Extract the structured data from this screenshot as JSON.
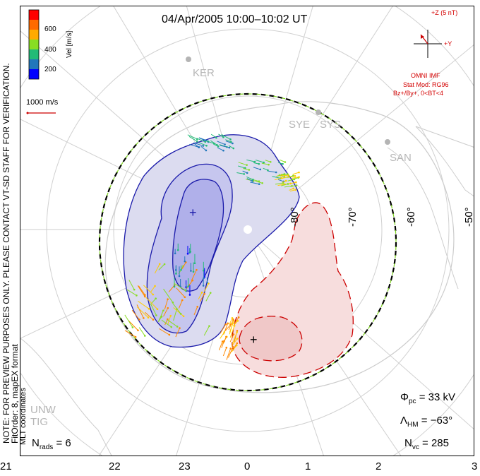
{
  "title": "04/Apr/2005 10:00–10:02 UT",
  "side_note": {
    "line1": "NOTE: FOR PREVIEW PURPOSES ONLY. PLEASE CONTACT VT-SD STAFF FOR VERIFICATION.",
    "line2": "FitOrder: 8, mapEX format",
    "coords": "MLT coordinates"
  },
  "colorbar": {
    "ticks": [
      "600",
      "400",
      "200"
    ],
    "label": "Vel [m/s]",
    "colors": [
      "#ff0000",
      "#ff8a00",
      "#ffcc00",
      "#88dd22",
      "#22bb77",
      "#2277bb",
      "#0000ff"
    ]
  },
  "scale_label": "1000 m/s",
  "imf": {
    "top_label": "+Z (5 nT)",
    "right_label": "+Y",
    "line1": "OMNI IMF",
    "line2": "Stat Mod: RG96",
    "line3": "Bz+/By+, 0<BT<4"
  },
  "stations": [
    "KER",
    "SYE",
    "SYS",
    "SAN",
    "UNW",
    "TIG"
  ],
  "lat_labels": [
    "-80°",
    "-70°",
    "-60°",
    "-50°"
  ],
  "mlt_labels": [
    "21",
    "22",
    "23",
    "0",
    "1",
    "2",
    "3"
  ],
  "stats": {
    "pc_sym": "Φ",
    "pc_sub": "pc",
    "pc_val": " = 33 kV",
    "hm_sym": "Λ",
    "hm_sub": "HM",
    "hm_val": " = −63°",
    "vc_sym": "N",
    "vc_sub": "vc",
    "vc_val": " = 285",
    "rads_sym": "N",
    "rads_sub": "rads",
    "rads_val": " = 6"
  }
}
